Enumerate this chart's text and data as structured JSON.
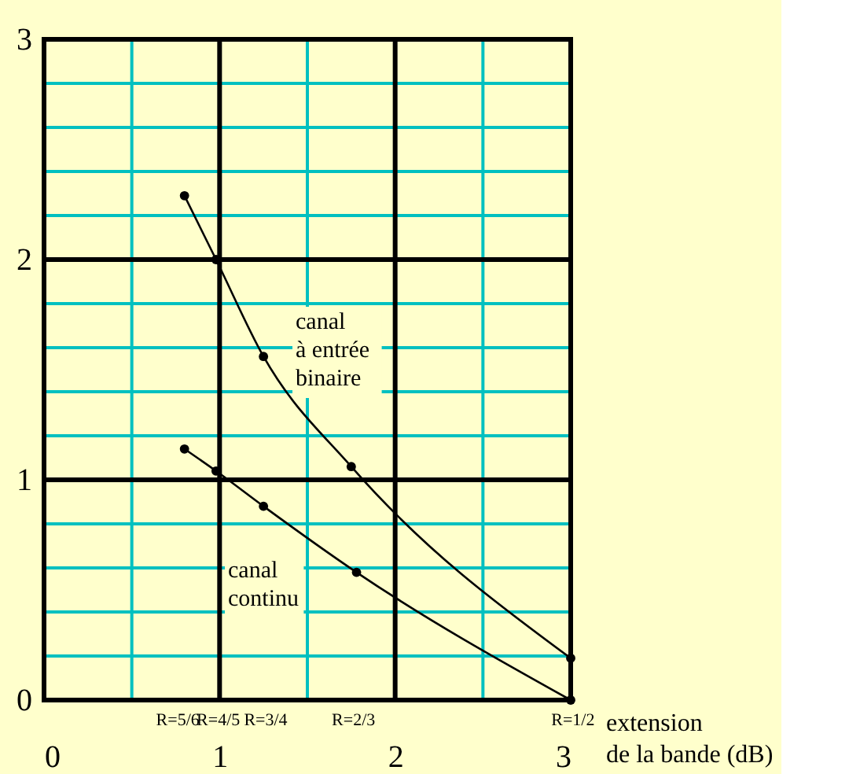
{
  "chart_data": {
    "type": "line",
    "xlabel": "extension\nde la bande (dB)",
    "series": [
      {
        "name": "canal\nà entrée\nbinaire",
        "color": "#000000",
        "x": [
          0.8,
          0.98,
          1.25,
          1.75,
          3.0
        ],
        "values": [
          2.29,
          2.0,
          1.56,
          1.06,
          0.19
        ]
      },
      {
        "name": "canal\ncontinu",
        "color": "#000000",
        "x": [
          0.8,
          0.98,
          1.25,
          1.78,
          3.0
        ],
        "values": [
          1.14,
          1.04,
          0.88,
          0.58,
          0.0
        ]
      }
    ],
    "marker": "circle",
    "line_style": "solid",
    "grid": true,
    "legend": false,
    "xlim": [
      0,
      3
    ],
    "xticks": [
      0,
      {
        "value": 0.5,
        "label": null
      },
      1,
      {
        "value": 1.5,
        "label": null
      },
      2,
      {
        "value": 2.5,
        "label": null
      },
      3
    ],
    "ylim": [
      0,
      3
    ],
    "yticks": [
      0,
      {
        "value": 0.2,
        "label": null
      },
      {
        "value": 0.4,
        "label": null
      },
      {
        "value": 0.6,
        "label": null
      },
      {
        "value": 0.8,
        "label": null
      },
      1,
      {
        "value": 1.2,
        "label": null
      },
      {
        "value": 1.4,
        "label": null
      },
      {
        "value": 1.6,
        "label": null
      },
      {
        "value": 1.8,
        "label": null
      },
      2,
      {
        "value": 2.2,
        "label": null
      },
      {
        "value": 2.4,
        "label": null
      },
      {
        "value": 2.6,
        "label": null
      },
      {
        "value": 2.8,
        "label": null
      },
      3
    ],
    "annotations": [
      "R=5/6",
      "R=4/5",
      "R=3/4",
      "R=2/3",
      "R=1/2"
    ]
  }
}
